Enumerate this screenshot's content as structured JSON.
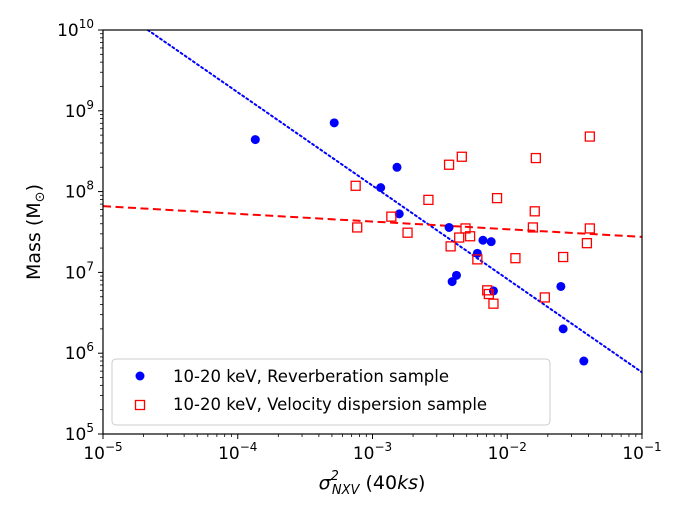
{
  "chart_data": {
    "type": "scatter",
    "title": "",
    "xscale": "log",
    "yscale": "log",
    "xlim_exp": [
      -5,
      -1
    ],
    "ylim_exp": [
      5,
      10
    ],
    "xlabel": {
      "main": "σ",
      "sup": "2",
      "sub": "NXV",
      "rest": " (40",
      "italic": "ks",
      "close": ")"
    },
    "ylabel": {
      "main": "Mass (M",
      "sub": "⊙",
      "close": ")"
    },
    "x_ticks": [
      {
        "base": "10",
        "exp": "−5"
      },
      {
        "base": "10",
        "exp": "−4"
      },
      {
        "base": "10",
        "exp": "−3"
      },
      {
        "base": "10",
        "exp": "−2"
      },
      {
        "base": "10",
        "exp": "−1"
      }
    ],
    "y_ticks": [
      {
        "base": "10",
        "exp": "5"
      },
      {
        "base": "10",
        "exp": "6"
      },
      {
        "base": "10",
        "exp": "7"
      },
      {
        "base": "10",
        "exp": "8"
      },
      {
        "base": "10",
        "exp": "9"
      },
      {
        "base": "10",
        "exp": "10"
      }
    ],
    "series": [
      {
        "name": "10-20 keV, Reverberation sample",
        "marker": "filled-circle",
        "color": "#0000ff",
        "points": [
          {
            "x": 0.000135,
            "y": 440000000.0
          },
          {
            "x": 0.00052,
            "y": 710000000.0
          },
          {
            "x": 0.00115,
            "y": 112000000.0
          },
          {
            "x": 0.00152,
            "y": 200000000.0
          },
          {
            "x": 0.00158,
            "y": 53000000.0
          },
          {
            "x": 0.0037,
            "y": 36000000.0
          },
          {
            "x": 0.0039,
            "y": 7700000.0
          },
          {
            "x": 0.0042,
            "y": 9200000.0
          },
          {
            "x": 0.006,
            "y": 17200000.0
          },
          {
            "x": 0.0066,
            "y": 25000000.0
          },
          {
            "x": 0.0076,
            "y": 24000000.0
          },
          {
            "x": 0.0079,
            "y": 5900000.0
          },
          {
            "x": 0.025,
            "y": 6700000.0
          },
          {
            "x": 0.026,
            "y": 2000000.0
          },
          {
            "x": 0.037,
            "y": 800000.0
          }
        ]
      },
      {
        "name": "10-20 keV, Velocity dispersion sample",
        "marker": "open-square",
        "color": "#ff0000",
        "points": [
          {
            "x": 0.00075,
            "y": 118000000.0
          },
          {
            "x": 0.00077,
            "y": 36000000.0
          },
          {
            "x": 0.00138,
            "y": 49000000.0
          },
          {
            "x": 0.00182,
            "y": 31000000.0
          },
          {
            "x": 0.0026,
            "y": 79000000.0
          },
          {
            "x": 0.0037,
            "y": 215000000.0
          },
          {
            "x": 0.0038,
            "y": 21000000.0
          },
          {
            "x": 0.0044,
            "y": 27000000.0
          },
          {
            "x": 0.0046,
            "y": 270000000.0
          },
          {
            "x": 0.0049,
            "y": 35000000.0
          },
          {
            "x": 0.0053,
            "y": 28000000.0
          },
          {
            "x": 0.006,
            "y": 14500000.0
          },
          {
            "x": 0.0071,
            "y": 6000000.0
          },
          {
            "x": 0.0073,
            "y": 5400000.0
          },
          {
            "x": 0.0079,
            "y": 4100000.0
          },
          {
            "x": 0.0084,
            "y": 83000000.0
          },
          {
            "x": 0.0115,
            "y": 15000000.0
          },
          {
            "x": 0.0155,
            "y": 36000000.0
          },
          {
            "x": 0.016,
            "y": 57000000.0
          },
          {
            "x": 0.0163,
            "y": 260000000.0
          },
          {
            "x": 0.019,
            "y": 4900000.0
          },
          {
            "x": 0.026,
            "y": 15500000.0
          },
          {
            "x": 0.039,
            "y": 23000000.0
          },
          {
            "x": 0.041,
            "y": 35000000.0
          },
          {
            "x": 0.041,
            "y": 480000000.0
          }
        ]
      }
    ],
    "fits": [
      {
        "name": "reverberation-fit",
        "style": "dotted",
        "color": "#0000ff",
        "from": {
          "x": 2.15e-05,
          "y": 10000000000.0
        },
        "to": {
          "x": 0.1,
          "y": 580000.0
        }
      },
      {
        "name": "velocity-dispersion-fit",
        "style": "dashed",
        "color": "#ff0000",
        "from": {
          "x": 1e-05,
          "y": 66000000.0
        },
        "to": {
          "x": 0.1,
          "y": 27500000.0
        }
      }
    ],
    "legend_position": "lower-left"
  }
}
